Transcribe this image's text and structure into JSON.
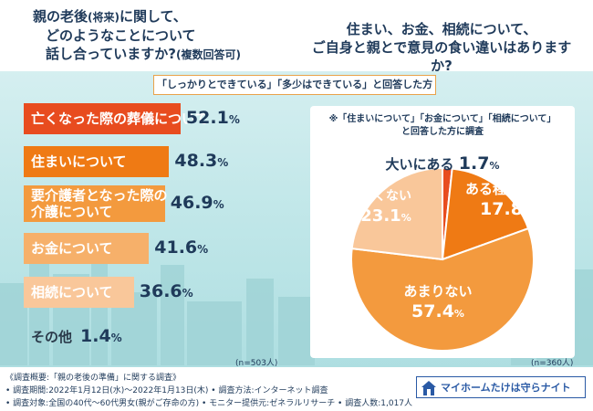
{
  "header": {
    "question_left_main_1": "親の老後",
    "question_left_paren_1": "(将来)",
    "question_left_main_2": "に関して、",
    "question_left_line_2": "どのようなことについて",
    "question_left_line_3": "話し合っていますか?",
    "question_left_paren_3": "(複数回答可)",
    "question_right_line_1": "住まい、お金、相続について、",
    "question_right_line_2": "ご自身と親とで意見の食い違いはありますか?"
  },
  "banner": "「しっかりとできている」「多少はできている」と回答した方",
  "bar_chart": {
    "n_label": "(n=503人)",
    "items": [
      {
        "label": "亡くなった際の葬儀について",
        "num": "52.1",
        "pct": "%",
        "value": 52.1,
        "color": "#e84c1f",
        "dark": false
      },
      {
        "label": "住まいについて",
        "num": "48.3",
        "pct": "%",
        "value": 48.3,
        "color": "#ef7a14",
        "dark": false
      },
      {
        "label_1": "要介護者となった際の",
        "label_2": "介護について",
        "num": "46.9",
        "pct": "%",
        "value": 46.9,
        "color": "#f39a3e",
        "dark": false
      },
      {
        "label": "お金について",
        "num": "41.6",
        "pct": "%",
        "value": 41.6,
        "color": "#f6b06a",
        "dark": false
      },
      {
        "label": "相続について",
        "num": "36.6",
        "pct": "%",
        "value": 36.6,
        "color": "#f9c79a",
        "dark": false
      },
      {
        "label": "その他",
        "num": "1.4",
        "pct": "%",
        "value": 1.4,
        "color": "#fce3c8",
        "dark": true
      }
    ]
  },
  "pie_chart": {
    "note_line_1": "※「住まいについて」「お金について」「相続について」",
    "note_line_2": "と回答した方に調査",
    "n_label": "(n=360人)",
    "slices": [
      {
        "label": "大いにある",
        "num": "1.7",
        "pct": "%",
        "value": 1.7,
        "color": "#e84c1f"
      },
      {
        "label": "ある程度ある",
        "num": "17.8",
        "pct": "%",
        "value": 17.8,
        "color": "#ef7a14"
      },
      {
        "label": "あまりない",
        "num": "57.4",
        "pct": "%",
        "value": 57.4,
        "color": "#f39a3e"
      },
      {
        "label": "全くない",
        "num": "23.1",
        "pct": "%",
        "value": 23.1,
        "color": "#f9c79a"
      }
    ]
  },
  "chart_data": [
    {
      "type": "bar",
      "categories": [
        "亡くなった際の葬儀について",
        "住まいについて",
        "要介護者となった際の介護について",
        "お金について",
        "相続について",
        "その他"
      ],
      "values": [
        52.1,
        48.3,
        46.9,
        41.6,
        36.6,
        1.4
      ],
      "title": "親の老後(将来)に関して、どのようなことについて話し合っていますか?(複数回答可)",
      "xlabel": "",
      "ylabel": "",
      "xlim": [
        0,
        100
      ]
    },
    {
      "type": "pie",
      "categories": [
        "大いにある",
        "ある程度ある",
        "あまりない",
        "全くない"
      ],
      "values": [
        1.7,
        17.8,
        57.4,
        23.1
      ],
      "title": "住まい、お金、相続について、ご自身と親とで意見の食い違いはありますか?"
    }
  ],
  "footer": {
    "line_1": "《調査概要:「親の老後の準備」に関する調査》",
    "line_2": "• 調査期間:2022年1月12日(水)〜2022年1月13日(木) • 調査方法:インターネット調査",
    "line_3": "• 調査対象:全国の40代〜60代男女(親がご存命の方) • モニター提供元:ゼネラルリサーチ • 調査人数:1,017人",
    "logo_text": "マイホームたけは守らナイト"
  },
  "colors": {
    "navy": "#1f3a5a",
    "accent": "#e84c1f",
    "teal_bg": "#bfe6e8"
  }
}
